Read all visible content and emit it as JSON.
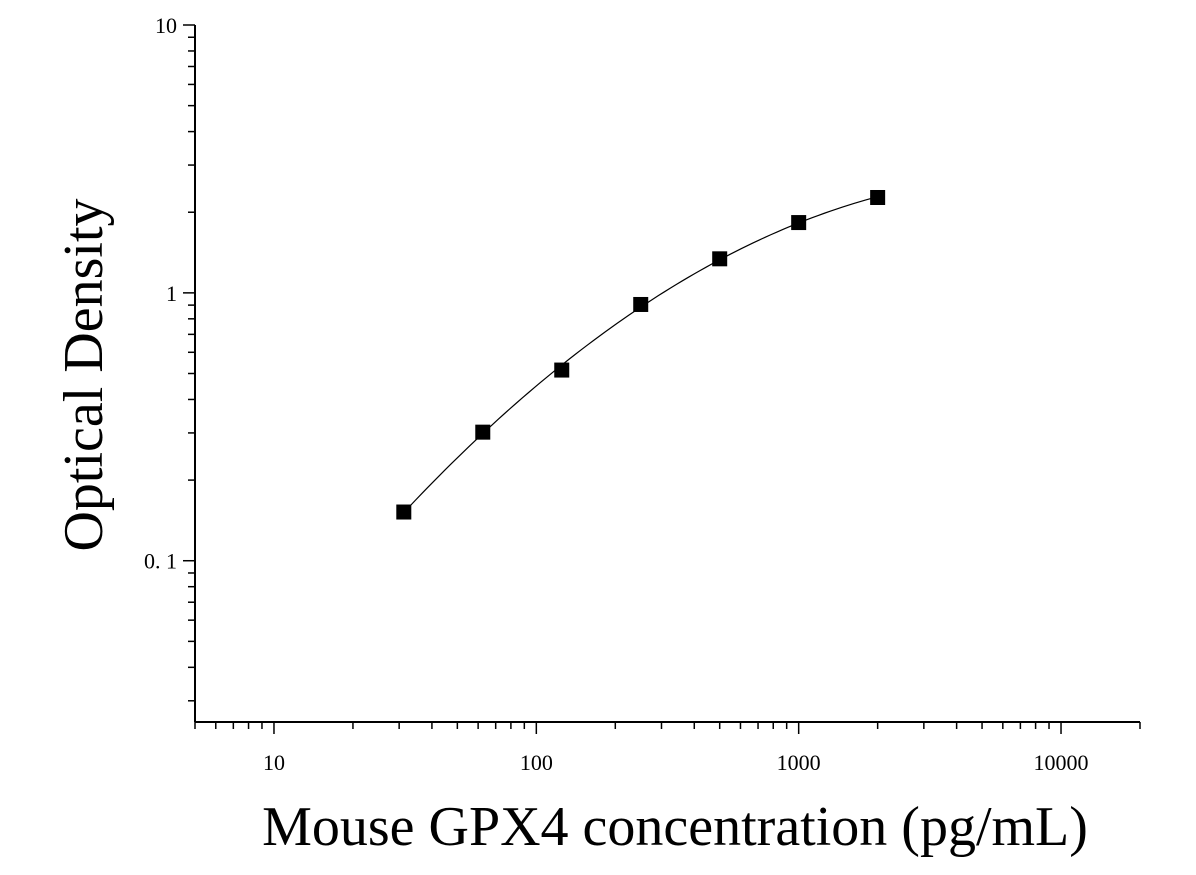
{
  "chart_data": {
    "type": "scatter",
    "title": "",
    "xlabel": "Mouse GPX4 concentration (pg/mL)",
    "ylabel": "Optical Density",
    "x_scale": "log",
    "y_scale": "log",
    "xlim": [
      5,
      20000
    ],
    "ylim": [
      0.025,
      10
    ],
    "x_ticks": [
      10,
      100,
      1000,
      10000
    ],
    "x_tick_labels": [
      "10",
      "100",
      "1000",
      "10000"
    ],
    "y_ticks": [
      0.1,
      1,
      10
    ],
    "y_tick_labels": [
      "0. 1",
      "1",
      "10"
    ],
    "grid": false,
    "legend": "none",
    "series": [
      {
        "x": [
          31.25,
          62.5,
          125,
          250,
          500,
          1000,
          2000
        ],
        "y": [
          0.152,
          0.302,
          0.515,
          0.905,
          1.34,
          1.83,
          2.27
        ],
        "marker": "square",
        "color": "#000000",
        "fit_line": true
      }
    ]
  }
}
